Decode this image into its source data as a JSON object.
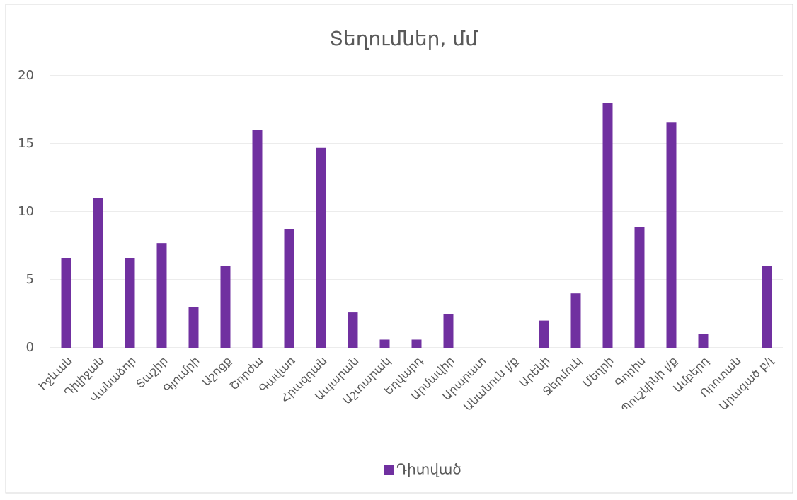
{
  "chart_data": {
    "type": "bar",
    "title": "Տեղումներ, մմ",
    "categories": [
      "Իջևան",
      "Դիլիջան",
      "Վանաձոր",
      "Տաշիր",
      "Գյումրի",
      "Աշոցք",
      "Շորժա",
      "Գավառ",
      "Հրազդան",
      "Ապարան",
      "Աշտարակ",
      "Եղվարդ",
      "Արմավիր",
      "Արարատ",
      "Անանուն լ/ք",
      "Արենի",
      "Ջերմուկ",
      "Մեղրի",
      "Գորիս",
      "Պուշկինի լ/ք",
      "Ամբերդ",
      "Որոտան",
      "Արագած բ/լ"
    ],
    "series": [
      {
        "name": "Դիտված",
        "color": "#7030a0",
        "values": [
          6.6,
          11,
          6.6,
          7.7,
          3,
          6,
          16,
          8.7,
          14.7,
          2.6,
          0.6,
          0.6,
          2.5,
          0,
          0,
          2,
          4,
          18,
          8.9,
          16.6,
          1,
          0,
          6
        ]
      }
    ],
    "ylim": [
      0,
      20
    ],
    "yticks": [
      0,
      5,
      10,
      15,
      20
    ],
    "grid": true,
    "legend": "bottom"
  }
}
